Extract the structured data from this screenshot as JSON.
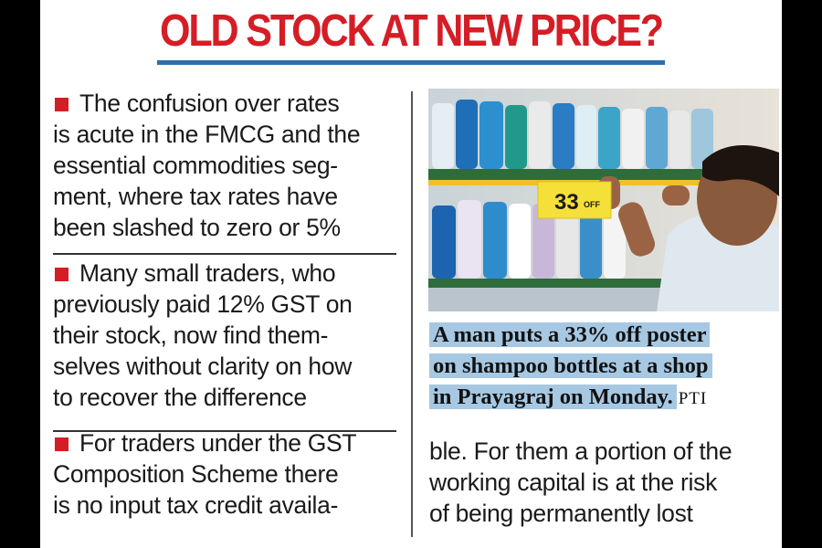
{
  "headline": "OLD STOCK AT NEW PRICE?",
  "points": [
    {
      "lines": [
        "The confusion over rates",
        "is acute in the FMCG and the",
        "essential commodities seg-",
        "ment, where tax rates have",
        "been slashed to zero or 5%"
      ]
    },
    {
      "lines": [
        "Many small traders, who",
        "previously paid 12% GST on",
        "their stock, now find them-",
        "selves without clarity on how",
        "to recover the difference"
      ]
    },
    {
      "lines": [
        "For traders under the GST",
        "Composition Scheme there",
        "is no input tax credit availa-"
      ]
    }
  ],
  "continuation_lines": [
    "ble. For them a portion of the",
    "working capital is at the risk",
    "of being permanently lost"
  ],
  "photo": {
    "description_icon": "shop-shelf-photo",
    "poster_text": "33",
    "poster_suffix": "OFF"
  },
  "caption": {
    "lines": [
      "A man puts a 33% off poster",
      "on shampoo bottles at a shop",
      "in Prayagraj on Monday."
    ],
    "credit": "PTI"
  },
  "colors": {
    "headline": "#d51d26",
    "rule": "#2b6fae",
    "bullet": "#d51d26",
    "caption_highlight": "#a6c8e3"
  }
}
